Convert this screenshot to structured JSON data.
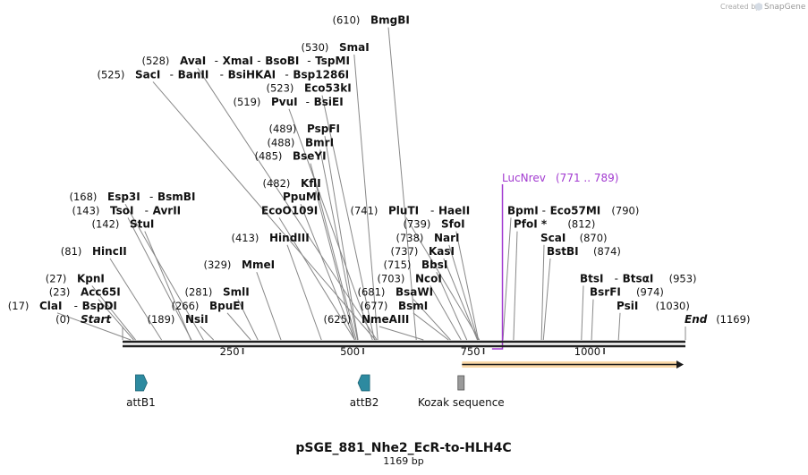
{
  "credit": {
    "text": "Created by",
    "brand": "SnapGene"
  },
  "map": {
    "name": "pSGE_881_Nhe2_EcR-to-HLH4C",
    "length_label": "1169 bp",
    "length_bp": 1169,
    "colors": {
      "backbone": "#222222",
      "primer": "#a23ad0",
      "orf": "#f3a93b",
      "feature_dark": "#2d8aa0",
      "misc": "#8a8a8a"
    }
  },
  "ticks": [
    {
      "label": "250",
      "bp": 250
    },
    {
      "label": "500",
      "bp": 500
    },
    {
      "label": "750",
      "bp": 750
    },
    {
      "label": "1000",
      "bp": 1000
    }
  ],
  "sites": [
    {
      "id": "start",
      "pos": "(0)",
      "names": [
        "Start"
      ],
      "italic": true,
      "bp": 0,
      "row": 0
    },
    {
      "id": "clai",
      "pos": "(17)",
      "names": [
        "ClaI",
        "BspDI"
      ],
      "bp": 17,
      "row": 1
    },
    {
      "id": "acc65i",
      "pos": "(23)",
      "names": [
        "Acc65I"
      ],
      "bp": 23,
      "row": 2
    },
    {
      "id": "kpni",
      "pos": "(27)",
      "names": [
        "KpnI"
      ],
      "bp": 27,
      "row": 3
    },
    {
      "id": "hincii",
      "pos": "(81)",
      "names": [
        "HincII"
      ],
      "bp": 81,
      "row": 5
    },
    {
      "id": "stui",
      "pos": "(142)",
      "names": [
        "StuI"
      ],
      "bp": 142,
      "row": 7
    },
    {
      "id": "tsoi",
      "pos": "(143)",
      "names": [
        "TsoI",
        "AvrII"
      ],
      "bp": 143,
      "row": 8
    },
    {
      "id": "esp3i",
      "pos": "(168)",
      "names": [
        "Esp3I",
        "BsmBI"
      ],
      "bp": 168,
      "row": 9
    },
    {
      "id": "nsii",
      "pos": "(189)",
      "names": [
        "NsiI"
      ],
      "bp": 189,
      "row": 0
    },
    {
      "id": "bpuei",
      "pos": "(266)",
      "names": [
        "BpuEI"
      ],
      "bp": 266,
      "row": 1
    },
    {
      "id": "smli",
      "pos": "(281)",
      "names": [
        "SmlI"
      ],
      "bp": 281,
      "row": 2
    },
    {
      "id": "mmei",
      "pos": "(329)",
      "names": [
        "MmeI"
      ],
      "bp": 329,
      "row": 4
    },
    {
      "id": "hindiii",
      "pos": "(413)",
      "names": [
        "HindIII"
      ],
      "bp": 413,
      "row": 6
    },
    {
      "id": "eco0109i",
      "pos": "",
      "names": [
        "EcoO109I"
      ],
      "bp": 482,
      "row": 8
    },
    {
      "id": "ppumi",
      "pos": "",
      "names": [
        "PpuMI"
      ],
      "bp": 482,
      "row": 9
    },
    {
      "id": "kfli",
      "pos": "(482)",
      "names": [
        "KflI"
      ],
      "bp": 482,
      "row": 10
    },
    {
      "id": "bseyi",
      "pos": "(485)",
      "names": [
        "BseYI"
      ],
      "bp": 485,
      "row": 12
    },
    {
      "id": "bmri",
      "pos": "(488)",
      "names": [
        "BmrI"
      ],
      "bp": 488,
      "row": 13
    },
    {
      "id": "pspfi",
      "pos": "(489)",
      "names": [
        "PspFI"
      ],
      "bp": 489,
      "row": 14
    },
    {
      "id": "pvui",
      "pos": "(519)",
      "names": [
        "PvuI",
        "BsiEI"
      ],
      "bp": 519,
      "row": 16
    },
    {
      "id": "eco53ki",
      "pos": "(523)",
      "names": [
        "Eco53kI"
      ],
      "bp": 523,
      "row": 17
    },
    {
      "id": "saci",
      "pos": "(525)",
      "names": [
        "SacI",
        "BanII",
        "BsiHKAI",
        "Bsp1286I"
      ],
      "bp": 525,
      "row": 18
    },
    {
      "id": "avai",
      "pos": "(528)",
      "names": [
        "AvaI",
        "XmaI",
        "BsoBI",
        "TspMI"
      ],
      "bp": 528,
      "row": 19
    },
    {
      "id": "smai",
      "pos": "(530)",
      "names": [
        "SmaI"
      ],
      "bp": 530,
      "row": 20
    },
    {
      "id": "bmgbi",
      "pos": "(610)",
      "names": [
        "BmgBI"
      ],
      "bp": 610,
      "row": 22
    },
    {
      "id": "nmeaiii",
      "pos": "(625)",
      "names": [
        "NmeAIII"
      ],
      "bp": 625,
      "row": 0
    },
    {
      "id": "bsmi",
      "pos": "(677)",
      "names": [
        "BsmI"
      ],
      "bp": 677,
      "row": 1
    },
    {
      "id": "bsawi",
      "pos": "(681)",
      "names": [
        "BsaWI"
      ],
      "bp": 681,
      "row": 2
    },
    {
      "id": "ncoi",
      "pos": "(703)",
      "names": [
        "NcoI"
      ],
      "bp": 703,
      "row": 3
    },
    {
      "id": "bbsi",
      "pos": "(715)",
      "names": [
        "BbsI"
      ],
      "bp": 715,
      "row": 4
    },
    {
      "id": "kasi",
      "pos": "(737)",
      "names": [
        "KasI"
      ],
      "bp": 737,
      "row": 5
    },
    {
      "id": "nari",
      "pos": "(738)",
      "names": [
        "NarI"
      ],
      "bp": 738,
      "row": 6
    },
    {
      "id": "sfoi",
      "pos": "(739)",
      "names": [
        "SfoI"
      ],
      "bp": 739,
      "row": 7
    },
    {
      "id": "pluti",
      "pos": "(741)",
      "names": [
        "PluTI",
        "HaeII"
      ],
      "bp": 741,
      "row": 8
    },
    {
      "id": "bpmi",
      "pos": "(790)",
      "names": [
        "BpmI",
        "Eco57MI"
      ],
      "bp": 790,
      "row": 8,
      "posAfter": true
    },
    {
      "id": "pfoi",
      "pos": "(812)",
      "names": [
        "PfoI *"
      ],
      "bp": 812,
      "row": 7,
      "posAfter": true
    },
    {
      "id": "scai",
      "pos": "(870)",
      "names": [
        "ScaI"
      ],
      "bp": 870,
      "row": 6,
      "posAfter": true
    },
    {
      "id": "bstbi",
      "pos": "(874)",
      "names": [
        "BstBI"
      ],
      "bp": 874,
      "row": 5,
      "posAfter": true
    },
    {
      "id": "btsi",
      "pos": "(953)",
      "names": [
        "BtsI",
        "BtsαI"
      ],
      "bp": 953,
      "row": 3,
      "posAfter": true
    },
    {
      "id": "bsrfi",
      "pos": "(974)",
      "names": [
        "BsrFI"
      ],
      "bp": 974,
      "row": 2,
      "posAfter": true
    },
    {
      "id": "psii",
      "pos": "(1030)",
      "names": [
        "PsiI"
      ],
      "bp": 1030,
      "row": 1,
      "posAfter": true
    },
    {
      "id": "end",
      "pos": "(1169)",
      "names": [
        "End"
      ],
      "italic": true,
      "bp": 1169,
      "row": 0,
      "posAfter": true
    }
  ],
  "primer": {
    "name": "LucNrev",
    "range": "(771 .. 789)",
    "start_bp": 771,
    "end_bp": 789,
    "direction": "reverse"
  },
  "features": [
    {
      "id": "attb1",
      "label": "attB1",
      "bp": 38,
      "shape": "arrow-right",
      "color": "#2d8aa0"
    },
    {
      "id": "attb2",
      "label": "attB2",
      "bp": 502,
      "shape": "arrow-left",
      "color": "#2d8aa0"
    },
    {
      "id": "kozak",
      "label": "Kozak sequence",
      "bp": 703,
      "shape": "box",
      "color": "#8a8a8a"
    }
  ],
  "orf": {
    "start_bp": 705,
    "end_bp": 1169,
    "direction": "forward",
    "color": "#f3a93b"
  }
}
